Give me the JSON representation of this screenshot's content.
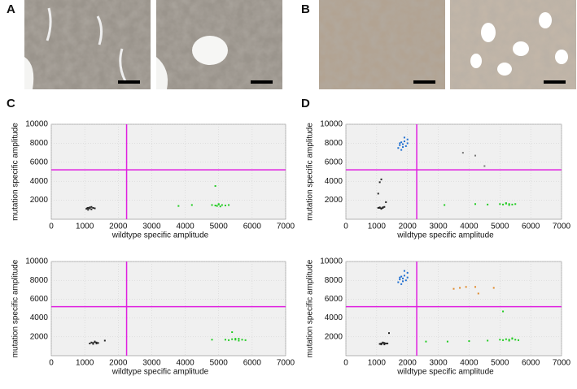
{
  "panel_labels": [
    "A",
    "B",
    "C",
    "D"
  ],
  "chart_data": [
    {
      "type": "scatter",
      "xlabel": "wildtype specific amplitude",
      "ylabel": "mutation specific amplitude",
      "xlim": [
        0,
        7000
      ],
      "ylim": [
        0,
        10000
      ],
      "xticks": [
        0,
        1000,
        2000,
        3000,
        4000,
        5000,
        6000,
        7000
      ],
      "yticks": [
        2000,
        4000,
        6000,
        8000,
        10000
      ],
      "grid": true,
      "threshold_x": 2250,
      "threshold_y": 5200,
      "threshold_color": "#e020e0",
      "series": [
        {
          "color": "#222222",
          "x": [
            1050,
            1100,
            1150,
            1200,
            1250,
            1150,
            1100,
            1200,
            1300,
            1080
          ],
          "y": [
            1100,
            1200,
            1150,
            1050,
            1200,
            1250,
            1000,
            1300,
            1150,
            1180
          ]
        },
        {
          "color": "#22cc22",
          "x": [
            4800,
            4900,
            5000,
            5100,
            5200,
            5300,
            5000,
            4950,
            5050,
            3800,
            4200,
            4900
          ],
          "y": [
            1500,
            1450,
            1550,
            1500,
            1450,
            1500,
            1600,
            1400,
            1350,
            1400,
            1500,
            3500
          ]
        }
      ]
    },
    {
      "type": "scatter",
      "xlabel": "wildtype specific amplitude",
      "ylabel": "mutation specific amplitude",
      "xlim": [
        0,
        7000
      ],
      "ylim": [
        0,
        10000
      ],
      "xticks": [
        0,
        1000,
        2000,
        3000,
        4000,
        5000,
        6000,
        7000
      ],
      "yticks": [
        2000,
        4000,
        6000,
        8000,
        10000
      ],
      "grid": true,
      "threshold_x": 2300,
      "threshold_y": 5200,
      "threshold_color": "#e020e0",
      "series": [
        {
          "color": "#222222",
          "x": [
            1050,
            1100,
            1150,
            1200,
            1250,
            1150,
            1100,
            1200,
            1050,
            1100,
            1150,
            1300
          ],
          "y": [
            1200,
            1250,
            1150,
            1200,
            1300,
            1100,
            1200,
            1250,
            2700,
            3900,
            4200,
            1800
          ]
        },
        {
          "color": "#1f6fd1",
          "x": [
            1700,
            1750,
            1800,
            1850,
            1900,
            1950,
            2000,
            1800,
            1900,
            1850,
            1750,
            2000
          ],
          "y": [
            7500,
            7800,
            8100,
            7900,
            8200,
            7700,
            8400,
            7300,
            8600,
            7600,
            8000,
            8000
          ]
        },
        {
          "color": "#777777",
          "x": [
            3800,
            4200,
            4500
          ],
          "y": [
            7000,
            6700,
            5600
          ]
        },
        {
          "color": "#22cc22",
          "x": [
            5000,
            5100,
            5200,
            5300,
            5400,
            5500,
            5200,
            5300,
            3200,
            4200,
            4600
          ],
          "y": [
            1600,
            1550,
            1650,
            1600,
            1550,
            1600,
            1700,
            1500,
            1500,
            1600,
            1550
          ]
        }
      ]
    },
    {
      "type": "scatter",
      "xlabel": "wildtype specific amplitude",
      "ylabel": "mutation specific amplitude",
      "xlim": [
        0,
        7000
      ],
      "ylim": [
        0,
        10000
      ],
      "xticks": [
        0,
        1000,
        2000,
        3000,
        4000,
        5000,
        6000,
        7000
      ],
      "yticks": [
        2000,
        4000,
        6000,
        8000,
        10000
      ],
      "grid": true,
      "threshold_x": 2250,
      "threshold_y": 5200,
      "threshold_color": "#e020e0",
      "series": [
        {
          "color": "#222222",
          "x": [
            1150,
            1200,
            1250,
            1300,
            1350,
            1400,
            1300,
            1250,
            1350,
            1600
          ],
          "y": [
            1300,
            1400,
            1350,
            1450,
            1400,
            1350,
            1500,
            1250,
            1300,
            1600
          ]
        },
        {
          "color": "#22cc22",
          "x": [
            5200,
            5300,
            5400,
            5500,
            5600,
            5700,
            5800,
            5500,
            5600,
            4800,
            5400
          ],
          "y": [
            1700,
            1650,
            1750,
            1700,
            1800,
            1700,
            1650,
            1800,
            1600,
            1700,
            2500
          ]
        }
      ]
    },
    {
      "type": "scatter",
      "xlabel": "wildtype specific amplitude",
      "ylabel": "mutation specific amplitude",
      "xlim": [
        0,
        7000
      ],
      "ylim": [
        0,
        10000
      ],
      "xticks": [
        0,
        1000,
        2000,
        3000,
        4000,
        5000,
        6000,
        7000
      ],
      "yticks": [
        2000,
        4000,
        6000,
        8000,
        10000
      ],
      "grid": true,
      "threshold_x": 2300,
      "threshold_y": 5200,
      "threshold_color": "#e020e0",
      "series": [
        {
          "color": "#222222",
          "x": [
            1100,
            1150,
            1200,
            1250,
            1300,
            1200,
            1150,
            1250,
            1350,
            1400
          ],
          "y": [
            1250,
            1300,
            1350,
            1200,
            1300,
            1400,
            1200,
            1350,
            1300,
            2400
          ]
        },
        {
          "color": "#1f6fd1",
          "x": [
            1700,
            1750,
            1800,
            1850,
            1900,
            1950,
            2000,
            1800,
            1900,
            1850,
            1750,
            2000
          ],
          "y": [
            7800,
            8100,
            8400,
            8200,
            8500,
            8000,
            8800,
            7600,
            9000,
            7900,
            8300,
            8300
          ]
        },
        {
          "color": "#e08a2a",
          "x": [
            3500,
            3700,
            3900,
            4200,
            4300,
            4800
          ],
          "y": [
            7100,
            7200,
            7300,
            7300,
            6600,
            7200
          ]
        },
        {
          "color": "#22cc22",
          "x": [
            5000,
            5100,
            5200,
            5300,
            5400,
            5500,
            5600,
            5300,
            5400,
            2600,
            3300,
            4000,
            4600,
            5100
          ],
          "y": [
            1700,
            1650,
            1750,
            1700,
            1800,
            1700,
            1650,
            1600,
            1850,
            1500,
            1500,
            1550,
            1600,
            4700
          ]
        }
      ]
    }
  ]
}
